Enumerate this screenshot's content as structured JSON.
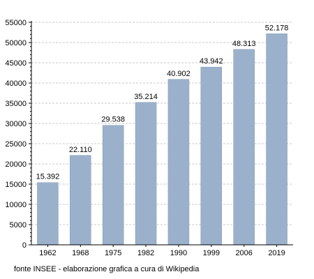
{
  "chart_data": {
    "type": "bar",
    "categories": [
      "1962",
      "1968",
      "1975",
      "1982",
      "1990",
      "1999",
      "2006",
      "2019"
    ],
    "values": [
      15392,
      22110,
      29538,
      35214,
      40902,
      43942,
      48313,
      52178
    ],
    "value_labels": [
      "15.392",
      "22.110",
      "29.538",
      "35.214",
      "40.902",
      "43.942",
      "48.313",
      "52.178"
    ],
    "yticks": [
      "0",
      "5000",
      "10000",
      "15000",
      "20000",
      "25000",
      "30000",
      "35000",
      "40000",
      "45000",
      "50000",
      "55000"
    ],
    "ylim": [
      0,
      55000
    ],
    "ystep": 5000,
    "grid": true,
    "bar_color": "#9bb1cb",
    "bar_edge_color": "#7f97b4",
    "grid_color": "#c8c8c8"
  },
  "source_note": "fonte INSEE - elaborazione grafica a cura di Wikipedia"
}
